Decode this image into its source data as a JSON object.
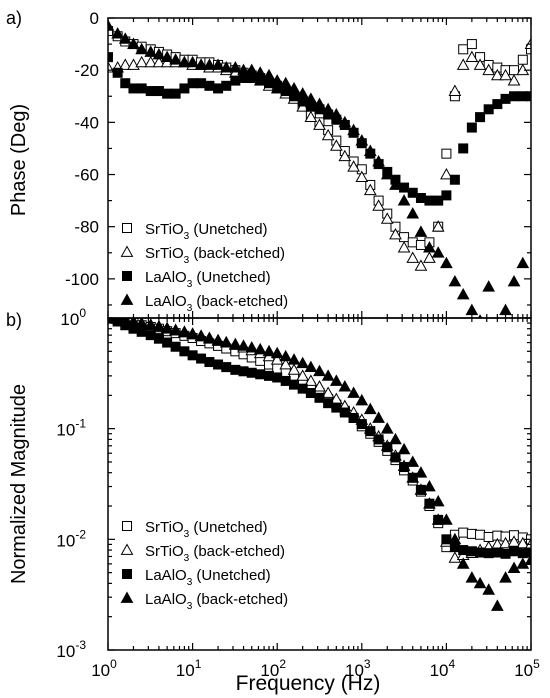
{
  "xlabel": "Frequency (Hz)",
  "series_styles": [
    {
      "marker": "square",
      "filled": false
    },
    {
      "marker": "triangle",
      "filled": false
    },
    {
      "marker": "square",
      "filled": true
    },
    {
      "marker": "triangle",
      "filled": true
    }
  ],
  "legend_entries": [
    {
      "prefix": "SrTiO",
      "sub": "3",
      "suffix": " (Unetched)"
    },
    {
      "prefix": "SrTiO",
      "sub": "3",
      "suffix": " (back-etched)"
    },
    {
      "prefix": "LaAlO",
      "sub": "3",
      "suffix": " (Unetched)"
    },
    {
      "prefix": "LaAlO",
      "sub": "3",
      "suffix": " (back-etched)"
    }
  ],
  "chart_data": [
    {
      "type": "scatter",
      "panel_label": "a)",
      "title": "",
      "xlabel": "Frequency (Hz)",
      "ylabel": "Phase (Deg)",
      "xscale": "log",
      "xlim": [
        1,
        100000
      ],
      "ylim": [
        -115,
        0
      ],
      "yticks": [
        0,
        -20,
        -40,
        -60,
        -80,
        -100
      ],
      "legend_position": "bottom-left",
      "series": [
        {
          "name": "SrTiO3 (Unetched)",
          "x": [
            1,
            1.3,
            1.6,
            2,
            2.5,
            3.2,
            4,
            5,
            6.3,
            8,
            10,
            12.6,
            15.8,
            20,
            25,
            32,
            40,
            50,
            63,
            80,
            100,
            126,
            158,
            200,
            250,
            316,
            400,
            500,
            630,
            800,
            1000,
            1260,
            1580,
            2000,
            2500,
            3160,
            4000,
            5000,
            6300,
            8000,
            10000,
            12600,
            15800,
            20000,
            25000,
            31600,
            40000,
            50000,
            63000,
            80000,
            100000
          ],
          "y": [
            -5,
            -7,
            -9,
            -10,
            -11,
            -12,
            -13,
            -14,
            -15,
            -16,
            -16,
            -17,
            -17,
            -18,
            -19,
            -20,
            -21,
            -22,
            -23,
            -25,
            -26,
            -28,
            -30,
            -33,
            -37,
            -40,
            -43,
            -47,
            -51,
            -55,
            -58,
            -64,
            -70,
            -75,
            -80,
            -84,
            -86,
            -87,
            -86,
            -80,
            -52,
            -30,
            -12,
            -10,
            -15,
            -18,
            -19,
            -20,
            -20,
            -16,
            -12
          ]
        },
        {
          "name": "SrTiO3 (back-etched)",
          "x": [
            1,
            1.3,
            1.6,
            2,
            2.5,
            3.2,
            4,
            5,
            6.3,
            8,
            10,
            12.6,
            15.8,
            20,
            25,
            32,
            40,
            50,
            63,
            80,
            100,
            126,
            158,
            200,
            250,
            316,
            400,
            500,
            630,
            800,
            1000,
            1260,
            1580,
            2000,
            2500,
            3160,
            4000,
            5000,
            6300,
            8000,
            10000,
            12600,
            15800,
            20000,
            25000,
            31600,
            40000,
            50000,
            63000,
            80000,
            100000
          ],
          "y": [
            -19,
            -19,
            -18,
            -18,
            -17,
            -17,
            -17,
            -17,
            -17,
            -17,
            -18,
            -18,
            -19,
            -19,
            -20,
            -21,
            -22,
            -23,
            -24,
            -26,
            -27,
            -29,
            -31,
            -34,
            -38,
            -41,
            -45,
            -49,
            -53,
            -57,
            -61,
            -66,
            -72,
            -77,
            -83,
            -88,
            -92,
            -95,
            -92,
            -80,
            -60,
            -28,
            -18,
            -15,
            -18,
            -20,
            -22,
            -22,
            -24,
            -20,
            -10
          ]
        },
        {
          "name": "LaAlO3 (Unetched)",
          "x": [
            1,
            1.3,
            1.6,
            2,
            2.5,
            3.2,
            4,
            5,
            6.3,
            8,
            10,
            12.6,
            15.8,
            20,
            25,
            32,
            40,
            50,
            63,
            80,
            100,
            126,
            158,
            200,
            250,
            316,
            400,
            500,
            630,
            800,
            1000,
            1260,
            1580,
            2000,
            2500,
            3160,
            4000,
            5000,
            6300,
            8000,
            10000,
            12600,
            15800,
            20000,
            25000,
            31600,
            40000,
            50000,
            63000,
            80000,
            100000
          ],
          "y": [
            -15,
            -21,
            -25,
            -27,
            -27,
            -28,
            -28,
            -29,
            -29,
            -27,
            -25,
            -25,
            -26,
            -27,
            -26,
            -24,
            -23,
            -23,
            -24,
            -25,
            -27,
            -28,
            -30,
            -32,
            -34,
            -35,
            -37,
            -39,
            -41,
            -44,
            -48,
            -52,
            -56,
            -59,
            -62,
            -65,
            -67,
            -69,
            -70,
            -70,
            -68,
            -62,
            -50,
            -42,
            -38,
            -35,
            -33,
            -31,
            -30,
            -30,
            -30
          ]
        },
        {
          "name": "LaAlO3 (back-etched)",
          "x": [
            1,
            1.3,
            1.6,
            2,
            2.5,
            3.2,
            4,
            5,
            6.3,
            8,
            10,
            12.6,
            15.8,
            20,
            25,
            32,
            40,
            50,
            63,
            80,
            100,
            126,
            158,
            200,
            250,
            316,
            400,
            500,
            630,
            800,
            1000,
            1260,
            1580,
            2000,
            2500,
            3160,
            4000,
            5000,
            6300,
            8000,
            10000,
            12600,
            15800,
            20000,
            25000,
            31600,
            50000,
            63000,
            80000
          ],
          "y": [
            -3,
            -6,
            -8,
            -10,
            -12,
            -13,
            -14,
            -15,
            -16,
            -17,
            -17,
            -18,
            -18,
            -18,
            -19,
            -19,
            -20,
            -20,
            -21,
            -22,
            -24,
            -25,
            -27,
            -29,
            -31,
            -33,
            -35,
            -37,
            -40,
            -43,
            -47,
            -51,
            -55,
            -60,
            -64,
            -70,
            -75,
            -82,
            -88,
            -90,
            -94,
            -101,
            -106,
            -112,
            -116,
            -103,
            -112,
            -101,
            -94
          ]
        }
      ]
    },
    {
      "type": "scatter",
      "panel_label": "b)",
      "title": "",
      "xlabel": "Frequency (Hz)",
      "ylabel": "Normalized Magnitude",
      "xscale": "log",
      "yscale": "log",
      "xlim": [
        1,
        100000
      ],
      "ylim": [
        0.001,
        1
      ],
      "legend_position": "bottom-left",
      "series": [
        {
          "name": "SrTiO3 (Unetched)",
          "x": [
            1,
            1.3,
            1.6,
            2,
            2.5,
            3.2,
            4,
            5,
            6.3,
            8,
            10,
            12.6,
            15.8,
            20,
            25,
            32,
            40,
            50,
            63,
            80,
            100,
            126,
            158,
            200,
            250,
            316,
            400,
            500,
            630,
            800,
            1000,
            1260,
            1580,
            2000,
            2500,
            3160,
            4000,
            5000,
            6300,
            8000,
            10000,
            12600,
            15800,
            20000,
            25000,
            31600,
            40000,
            50000,
            63000,
            80000,
            100000
          ],
          "y": [
            1,
            0.97,
            0.93,
            0.9,
            0.86,
            0.83,
            0.8,
            0.76,
            0.73,
            0.69,
            0.66,
            0.62,
            0.59,
            0.56,
            0.53,
            0.5,
            0.47,
            0.44,
            0.41,
            0.38,
            0.35,
            0.32,
            0.29,
            0.26,
            0.235,
            0.21,
            0.185,
            0.165,
            0.145,
            0.125,
            0.105,
            0.09,
            0.076,
            0.063,
            0.052,
            0.042,
            0.034,
            0.027,
            0.02,
            0.014,
            0.0085,
            0.011,
            0.0115,
            0.0112,
            0.011,
            0.0105,
            0.0108,
            0.0106,
            0.0109,
            0.0104,
            0.01
          ]
        },
        {
          "name": "SrTiO3 (back-etched)",
          "x": [
            1,
            1.3,
            1.6,
            2,
            2.5,
            3.2,
            4,
            5,
            6.3,
            8,
            10,
            12.6,
            15.8,
            20,
            25,
            32,
            40,
            50,
            63,
            80,
            100,
            126,
            158,
            200,
            250,
            316,
            400,
            500,
            630,
            800,
            1000,
            1260,
            1580,
            2000,
            2500,
            3160,
            4000,
            5000,
            6300,
            8000,
            10000,
            12600,
            15800,
            20000,
            25000,
            31600,
            40000,
            50000,
            63000,
            80000,
            100000
          ],
          "y": [
            1,
            0.98,
            0.96,
            0.93,
            0.9,
            0.87,
            0.84,
            0.81,
            0.78,
            0.75,
            0.72,
            0.69,
            0.66,
            0.63,
            0.6,
            0.57,
            0.54,
            0.51,
            0.48,
            0.45,
            0.42,
            0.38,
            0.34,
            0.3,
            0.27,
            0.24,
            0.21,
            0.185,
            0.16,
            0.14,
            0.12,
            0.1,
            0.085,
            0.07,
            0.057,
            0.046,
            0.036,
            0.028,
            0.021,
            0.015,
            0.0095,
            0.0068,
            0.0072,
            0.0075,
            0.008,
            0.0085,
            0.009,
            0.0092,
            0.0095,
            0.0092,
            0.009
          ]
        },
        {
          "name": "LaAlO3 (Unetched)",
          "x": [
            1,
            1.3,
            1.6,
            2,
            2.5,
            3.2,
            4,
            5,
            6.3,
            8,
            10,
            12.6,
            15.8,
            20,
            25,
            32,
            40,
            50,
            63,
            80,
            100,
            126,
            158,
            200,
            250,
            316,
            400,
            500,
            630,
            800,
            1000,
            1260,
            1580,
            2000,
            2500,
            3160,
            4000,
            5000,
            6300,
            8000,
            10000,
            12600,
            15800,
            20000,
            25000,
            31600,
            40000,
            50000,
            63000,
            80000,
            100000
          ],
          "y": [
            1,
            0.93,
            0.86,
            0.8,
            0.75,
            0.7,
            0.65,
            0.6,
            0.55,
            0.5,
            0.46,
            0.43,
            0.4,
            0.38,
            0.36,
            0.34,
            0.33,
            0.32,
            0.31,
            0.3,
            0.29,
            0.27,
            0.25,
            0.23,
            0.21,
            0.19,
            0.17,
            0.155,
            0.14,
            0.125,
            0.11,
            0.095,
            0.08,
            0.068,
            0.055,
            0.045,
            0.036,
            0.028,
            0.021,
            0.015,
            0.01,
            0.0085,
            0.008,
            0.0078,
            0.0076,
            0.0075,
            0.0076,
            0.0074,
            0.0078,
            0.0075,
            0.0076
          ]
        },
        {
          "name": "LaAlO3 (back-etched)",
          "x": [
            1,
            1.3,
            1.6,
            2,
            2.5,
            3.2,
            4,
            5,
            6.3,
            8,
            10,
            12.6,
            15.8,
            20,
            25,
            32,
            40,
            50,
            63,
            80,
            100,
            126,
            158,
            200,
            250,
            316,
            400,
            500,
            630,
            800,
            1000,
            1260,
            1580,
            2000,
            2500,
            3160,
            4000,
            5000,
            6300,
            8000,
            10000,
            12600,
            15800,
            20000,
            25000,
            31600,
            40000,
            50000,
            63000,
            80000,
            100000
          ],
          "y": [
            1,
            0.98,
            0.95,
            0.92,
            0.89,
            0.86,
            0.83,
            0.8,
            0.77,
            0.74,
            0.71,
            0.68,
            0.65,
            0.62,
            0.6,
            0.58,
            0.56,
            0.54,
            0.52,
            0.5,
            0.48,
            0.45,
            0.42,
            0.39,
            0.36,
            0.33,
            0.3,
            0.27,
            0.24,
            0.21,
            0.18,
            0.15,
            0.125,
            0.1,
            0.08,
            0.065,
            0.05,
            0.04,
            0.03,
            0.022,
            0.015,
            0.01,
            0.006,
            0.0045,
            0.004,
            0.0035,
            0.0025,
            0.0045,
            0.0055,
            0.006,
            0.0065
          ]
        }
      ]
    }
  ]
}
